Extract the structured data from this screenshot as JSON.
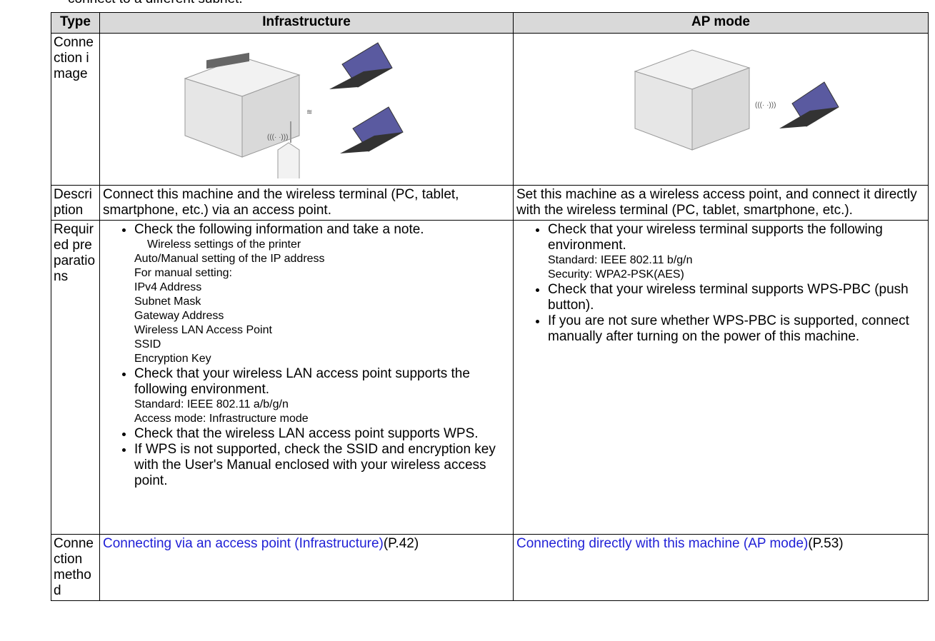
{
  "intro_fragment": "connect to a different subnet.",
  "table": {
    "headers": [
      "Type",
      "Infrastructure",
      "AP mode"
    ],
    "image_row": {
      "label": "Connection image"
    },
    "description": {
      "label": "Description",
      "infrastructure": "Connect this machine and the wireless terminal (PC, tablet, smartphone, etc.) via an access point.",
      "ap_mode": "Set this machine as a wireless access point, and connect it directly with the wireless terminal (PC, tablet, smartphone, etc.)."
    },
    "preparations": {
      "label": "Required preparations",
      "infrastructure": [
        {
          "text": "Check the following information and take a note.",
          "lead": "Wireless settings of the printer",
          "details": [
            "Auto/Manual setting of the IP address",
            "For manual setting:",
            "IPv4 Address",
            "Subnet Mask",
            "Gateway Address",
            "Wireless LAN Access Point",
            "SSID",
            "Encryption Key"
          ]
        },
        {
          "text": "Check that your wireless LAN access point supports the following environment.",
          "details": [
            "Standard: IEEE 802.11 a/b/g/n",
            "Access mode: Infrastructure mode"
          ]
        },
        {
          "text": "Check that the wireless LAN access point supports WPS."
        },
        {
          "text": "If WPS is not supported, check the SSID and encryption key with the User's Manual enclosed with your wireless access point."
        }
      ],
      "ap_mode": [
        {
          "text": "Check that your wireless terminal supports the following environment.",
          "details": [
            "Standard: IEEE 802.11 b/g/n",
            "Security: WPA2-PSK(AES)"
          ]
        },
        {
          "text": "Check that your wireless terminal supports WPS-PBC (push button)."
        },
        {
          "text": "If you are not sure whether WPS-PBC is supported, connect manually after turning on the power of this machine."
        }
      ]
    },
    "method": {
      "label": "Connection method",
      "infrastructure": {
        "link": "Connecting via an access point (Infrastructure)",
        "page": "(P.42)"
      },
      "ap_mode": {
        "link": "Connecting directly with this machine (AP mode)",
        "page": "(P.53)"
      }
    }
  }
}
